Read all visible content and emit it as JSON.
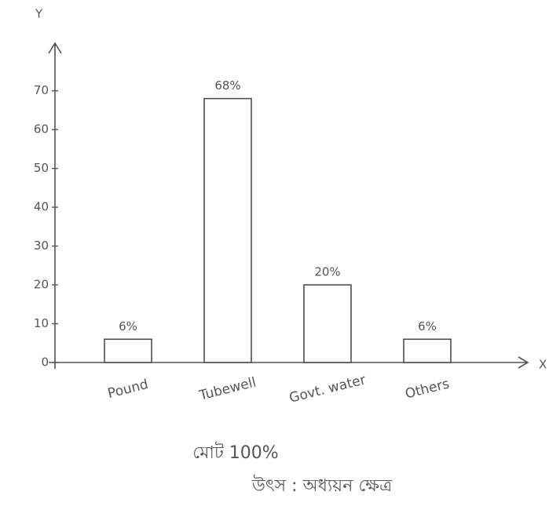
{
  "chart_data": {
    "type": "bar",
    "x_label": "X",
    "y_label": "Y",
    "categories": [
      "Pound",
      "Tubewell",
      "Govt. water",
      "Others"
    ],
    "values": [
      6,
      68,
      20,
      6
    ],
    "value_labels": [
      "6%",
      "68%",
      "20%",
      "6%"
    ],
    "color": "#ffffff",
    "edge_color": "#444444",
    "ylim": [
      0,
      75
    ],
    "yticks": [
      0,
      10,
      20,
      30,
      40,
      50,
      60,
      70
    ],
    "grid": false,
    "annotations": [
      "মোট 100%",
      "উৎস : অধ্যয়ন ক্ষেত্র"
    ]
  }
}
